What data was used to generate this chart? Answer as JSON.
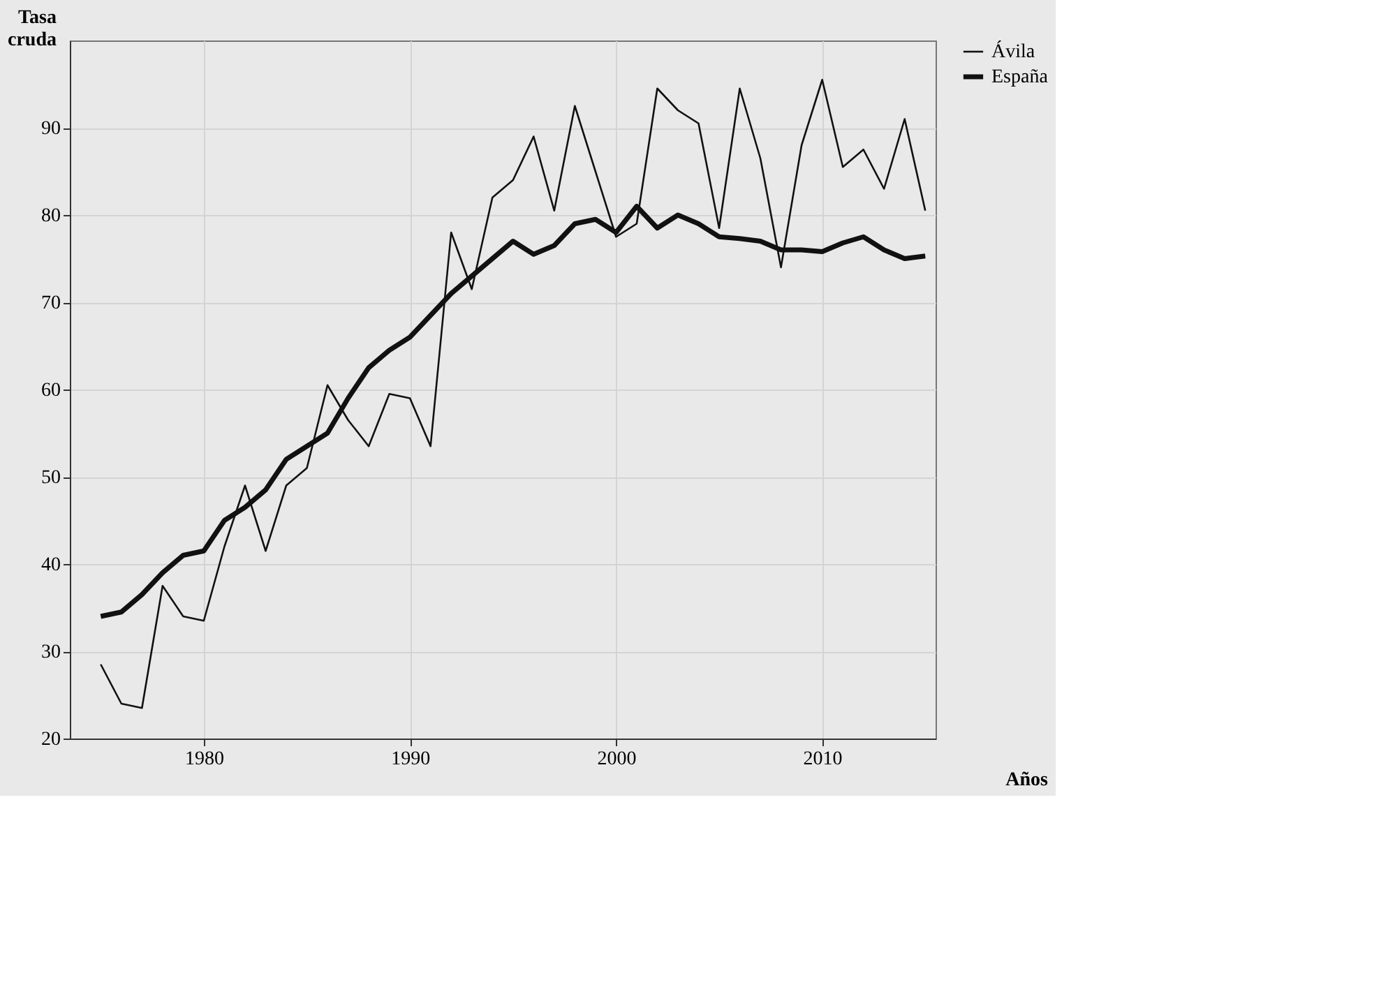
{
  "chart_data": {
    "type": "line",
    "xlabel": "Años",
    "ylabel": "Tasa cruda",
    "x": [
      1975,
      1976,
      1977,
      1978,
      1979,
      1980,
      1981,
      1982,
      1983,
      1984,
      1985,
      1986,
      1987,
      1988,
      1989,
      1990,
      1991,
      1992,
      1993,
      1994,
      1995,
      1996,
      1997,
      1998,
      1999,
      2000,
      2001,
      2002,
      2003,
      2004,
      2005,
      2006,
      2007,
      2008,
      2009,
      2010,
      2011,
      2012,
      2013,
      2014,
      2015
    ],
    "series": [
      {
        "name": "Ávila",
        "color": "#111111",
        "values": [
          28.5,
          24,
          23.5,
          37.5,
          34,
          33.5,
          42,
          49,
          41.5,
          49,
          51,
          60.5,
          56.5,
          53.5,
          59.5,
          59,
          53.5,
          78,
          71.5,
          82,
          84,
          89,
          80.5,
          92.5,
          85,
          77.5,
          79,
          94.5,
          92,
          90.5,
          78.5,
          94.5,
          86.5,
          74,
          88,
          95.5,
          85.5,
          87.5,
          83,
          91,
          80.5
        ]
      },
      {
        "name": "España",
        "color": "#111111",
        "values": [
          34,
          34.5,
          36.5,
          39,
          41,
          41.5,
          45,
          46.5,
          48.5,
          52,
          53.5,
          55,
          59,
          62.5,
          64.5,
          66,
          68.5,
          71,
          73,
          75,
          77,
          75.5,
          76.5,
          79,
          79.5,
          78,
          81,
          78.5,
          80,
          79,
          77.5,
          77.3,
          77,
          76,
          76,
          75.8,
          76.8,
          77.5,
          76,
          75,
          75.3
        ]
      }
    ],
    "xlim": [
      1973.5,
      2015.5
    ],
    "xticks": [
      1980,
      1990,
      2000,
      2010
    ],
    "ylim": [
      20,
      100
    ],
    "yticks": [
      20,
      30,
      40,
      50,
      60,
      70,
      80,
      90
    ],
    "grid": true,
    "legend": "right",
    "marker": "none",
    "line_style": "solid"
  }
}
